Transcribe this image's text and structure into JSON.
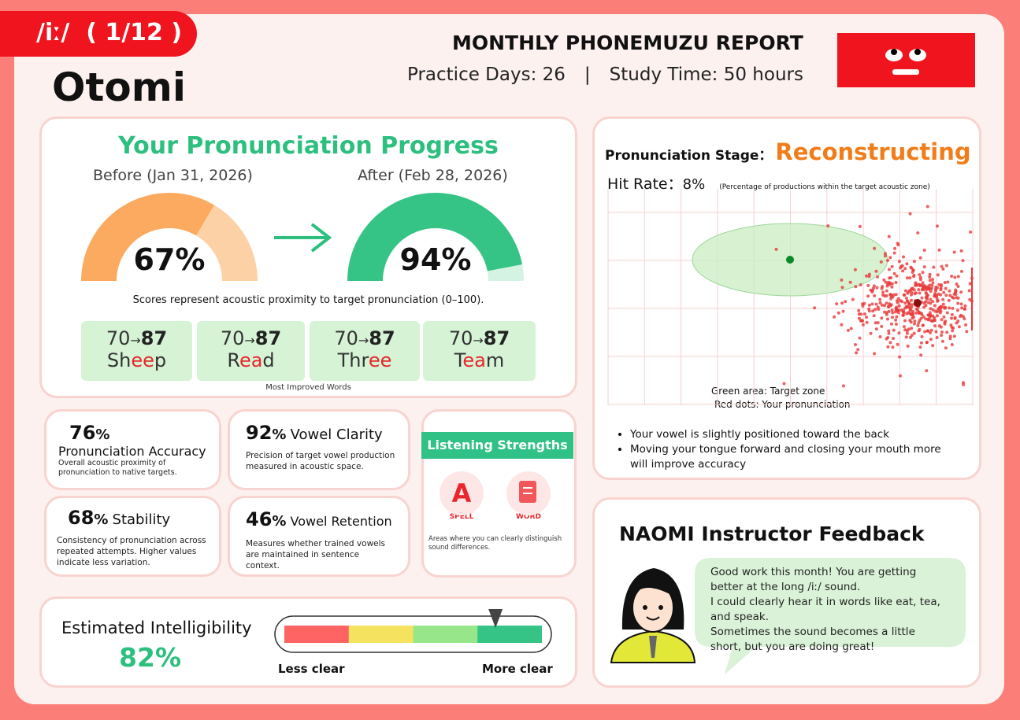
{
  "header": {
    "tag": "/iː/  ( 1/12 )",
    "name": "Otomi",
    "report_title": "MONTHLY PHONEMUZU REPORT",
    "practice_days": "Practice Days: 26",
    "separator": "|",
    "study_time": "Study Time: 50 hours"
  },
  "unit": "%",
  "progress": {
    "title": "Your Pronunciation Progress",
    "before_label": "Before (Jan 31, 2026)",
    "after_label": "After (Feb 28, 2026)",
    "before": 67,
    "after": 94,
    "scale": [
      0,
      100
    ],
    "note": "Scores represent acoustic proximity to target pronunciation (0–100).",
    "arrow": "→",
    "words": [
      {
        "from": 70,
        "to": 87,
        "parts": [
          "Sh",
          "ee",
          "p"
        ]
      },
      {
        "from": 70,
        "to": 87,
        "parts": [
          "R",
          "ea",
          "d"
        ]
      },
      {
        "from": 70,
        "to": 87,
        "parts": [
          "Thr",
          "ee"
        ]
      },
      {
        "from": 70,
        "to": 87,
        "parts": [
          "T",
          "ea",
          "m"
        ]
      }
    ],
    "words_caption": "Most Improved Words"
  },
  "metrics": [
    {
      "value": 76,
      "name": "Pronunciation Accuracy",
      "description": "Overall acoustic proximity of pronunciation to native targets."
    },
    {
      "value": 92,
      "name": "Vowel Clarity",
      "description": "Precision of target vowel production measured in acoustic space."
    },
    {
      "value": 68,
      "name": "Stability",
      "description": "Consistency of pronunciation across repeated attempts. Higher values indicate less variation."
    },
    {
      "value": 46,
      "name": "Vowel Retention",
      "description": "Measures whether trained vowels are maintained in sentence context."
    }
  ],
  "listening": {
    "title": "Listening Strengths",
    "skills": [
      "SPELL",
      "WORD"
    ],
    "note": "Areas where you can clearly distinguish sound differences."
  },
  "stage": {
    "label": "Pronunciation Stage：",
    "value": "Reconstructing",
    "hit_rate_label": "Hit Rate：",
    "hit_rate": 8,
    "hit_rate_note": "(Percentage of productions within the target acoustic zone)",
    "legend": [
      "Green area: Target zone",
      "Red dots: Your pronunciation"
    ],
    "tips": [
      "Your vowel is slightly positioned toward the back",
      "Moving your tongue forward and closing your mouth more will improve accuracy"
    ]
  },
  "intelligibility": {
    "label": "Estimated Intelligibility",
    "value": 82,
    "scale": [
      0,
      100
    ],
    "min_label": "Less clear",
    "max_label": "More clear"
  },
  "feedback": {
    "title": "NAOMI Instructor Feedback",
    "lines": [
      "Good work this month! You are getting",
      "better at the long /iː/ sound.",
      "I could clearly hear it in words like eat, tea,",
      "and speak.",
      "Sometimes the sound becomes a little",
      "short, but you are doing great!"
    ]
  }
}
